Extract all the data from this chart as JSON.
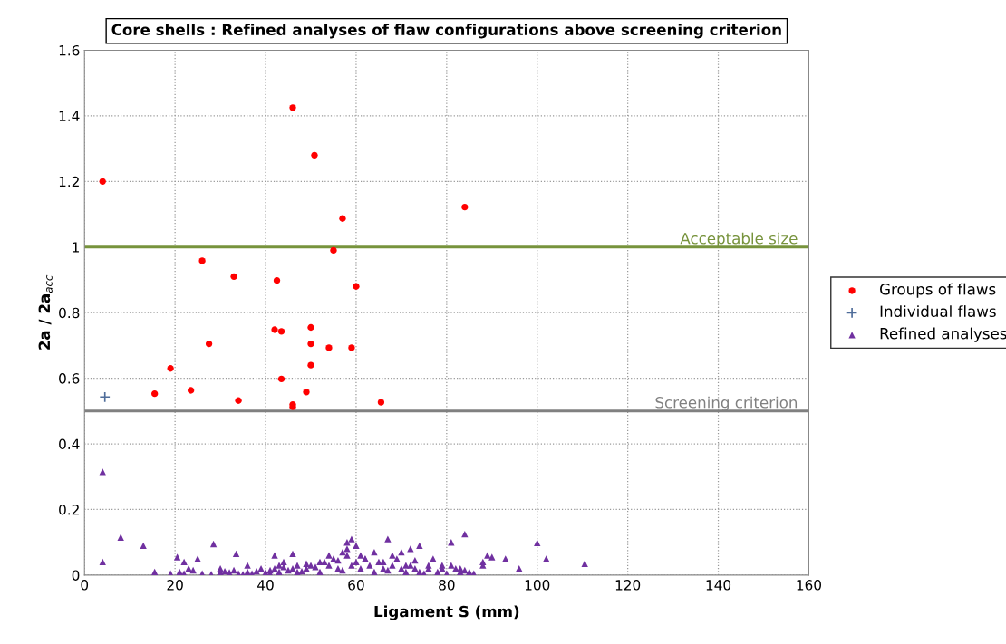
{
  "chart_data": {
    "type": "scatter",
    "title": "Core shells : Refined analyses of flaw configurations above screening criterion",
    "xlabel": "Ligament S (mm)",
    "ylabel": "2a / 2a$_{acc}$",
    "xlim": [
      0,
      160
    ],
    "xticks": [
      0,
      20,
      40,
      60,
      80,
      100,
      120,
      140,
      160
    ],
    "ylim": [
      0,
      1.6
    ],
    "yticks": [
      0,
      0.2,
      0.4,
      0.6,
      0.8,
      1,
      1.2,
      1.4,
      1.6
    ],
    "grid": true,
    "legend": "right",
    "ref_lines": [
      {
        "axis": "y",
        "value": 1,
        "label": "Acceptable size",
        "color": "#77933c"
      },
      {
        "axis": "y",
        "value": 0.5,
        "label": "Screening criterion",
        "color": "#808080"
      }
    ],
    "series": [
      {
        "name": "Groups of flaws",
        "color": "#ff0000",
        "marker": "circle",
        "x": [
          4,
          46,
          50.8,
          57,
          84,
          55,
          26,
          33,
          42.5,
          60,
          42,
          43.5,
          50,
          27.5,
          50,
          54,
          59,
          19,
          50,
          43.5,
          49,
          15.5,
          23.5,
          34,
          46,
          46,
          65.5
        ],
        "values": [
          1.2,
          1.425,
          1.28,
          1.087,
          1.122,
          0.99,
          0.958,
          0.91,
          0.898,
          0.88,
          0.748,
          0.743,
          0.755,
          0.705,
          0.705,
          0.693,
          0.693,
          0.63,
          0.64,
          0.598,
          0.558,
          0.553,
          0.563,
          0.532,
          0.52,
          0.513,
          0.527
        ]
      },
      {
        "name": "Individual flaws",
        "color": "#4f6d9a",
        "marker": "cross",
        "x": [
          4.5
        ],
        "values": [
          0.543
        ]
      },
      {
        "name": "Refined analyses",
        "color": "#7030a0",
        "marker": "triangle",
        "x": [
          4,
          4,
          8,
          13,
          15.5,
          20.5,
          22,
          23,
          25,
          28.5,
          33.5,
          42,
          44,
          46,
          58,
          59,
          67,
          81,
          84,
          100,
          102,
          110.5,
          89,
          90,
          93,
          96,
          88,
          85,
          81,
          77,
          72,
          70,
          74,
          19,
          21,
          22,
          24,
          26,
          28,
          30,
          31,
          32,
          33,
          34,
          35,
          36,
          37,
          38,
          39,
          40,
          41,
          42,
          43,
          44,
          45,
          46,
          47,
          48,
          49,
          50,
          51,
          52,
          53,
          54,
          55,
          56,
          57,
          58,
          59,
          60,
          61,
          62,
          63,
          64,
          65,
          66,
          67,
          68,
          69,
          70,
          71,
          72,
          73,
          74,
          75,
          76,
          78,
          79,
          80,
          82,
          83,
          84,
          86,
          30,
          36,
          41,
          43,
          47,
          49,
          52,
          54,
          56,
          57,
          58,
          60,
          61,
          62,
          64,
          66,
          68,
          71,
          73,
          76,
          79,
          83,
          88
        ],
        "values": [
          0.315,
          0.04,
          0.115,
          0.09,
          0.01,
          0.055,
          0.04,
          0.02,
          0.05,
          0.095,
          0.065,
          0.06,
          0.04,
          0.065,
          0.1,
          0.11,
          0.11,
          0.1,
          0.125,
          0.098,
          0.05,
          0.035,
          0.06,
          0.055,
          0.05,
          0.02,
          0.03,
          0.01,
          0.03,
          0.05,
          0.08,
          0.07,
          0.09,
          0.005,
          0.01,
          0.005,
          0.015,
          0.005,
          0.003,
          0.01,
          0.012,
          0.008,
          0.015,
          0.005,
          0.003,
          0.01,
          0.005,
          0.012,
          0.02,
          0.008,
          0.015,
          0.02,
          0.01,
          0.025,
          0.015,
          0.02,
          0.03,
          0.012,
          0.02,
          0.03,
          0.025,
          0.01,
          0.04,
          0.03,
          0.05,
          0.02,
          0.015,
          0.06,
          0.03,
          0.04,
          0.02,
          0.05,
          0.03,
          0.01,
          0.04,
          0.02,
          0.015,
          0.03,
          0.05,
          0.02,
          0.01,
          0.03,
          0.02,
          0.01,
          0.005,
          0.02,
          0.01,
          0.03,
          0.005,
          0.02,
          0.01,
          0.015,
          0.005,
          0.02,
          0.03,
          0.005,
          0.03,
          0.01,
          0.035,
          0.04,
          0.06,
          0.045,
          0.07,
          0.08,
          0.09,
          0.06,
          0.05,
          0.07,
          0.04,
          0.06,
          0.03,
          0.045,
          0.03,
          0.02,
          0.02,
          0.04
        ]
      }
    ]
  }
}
